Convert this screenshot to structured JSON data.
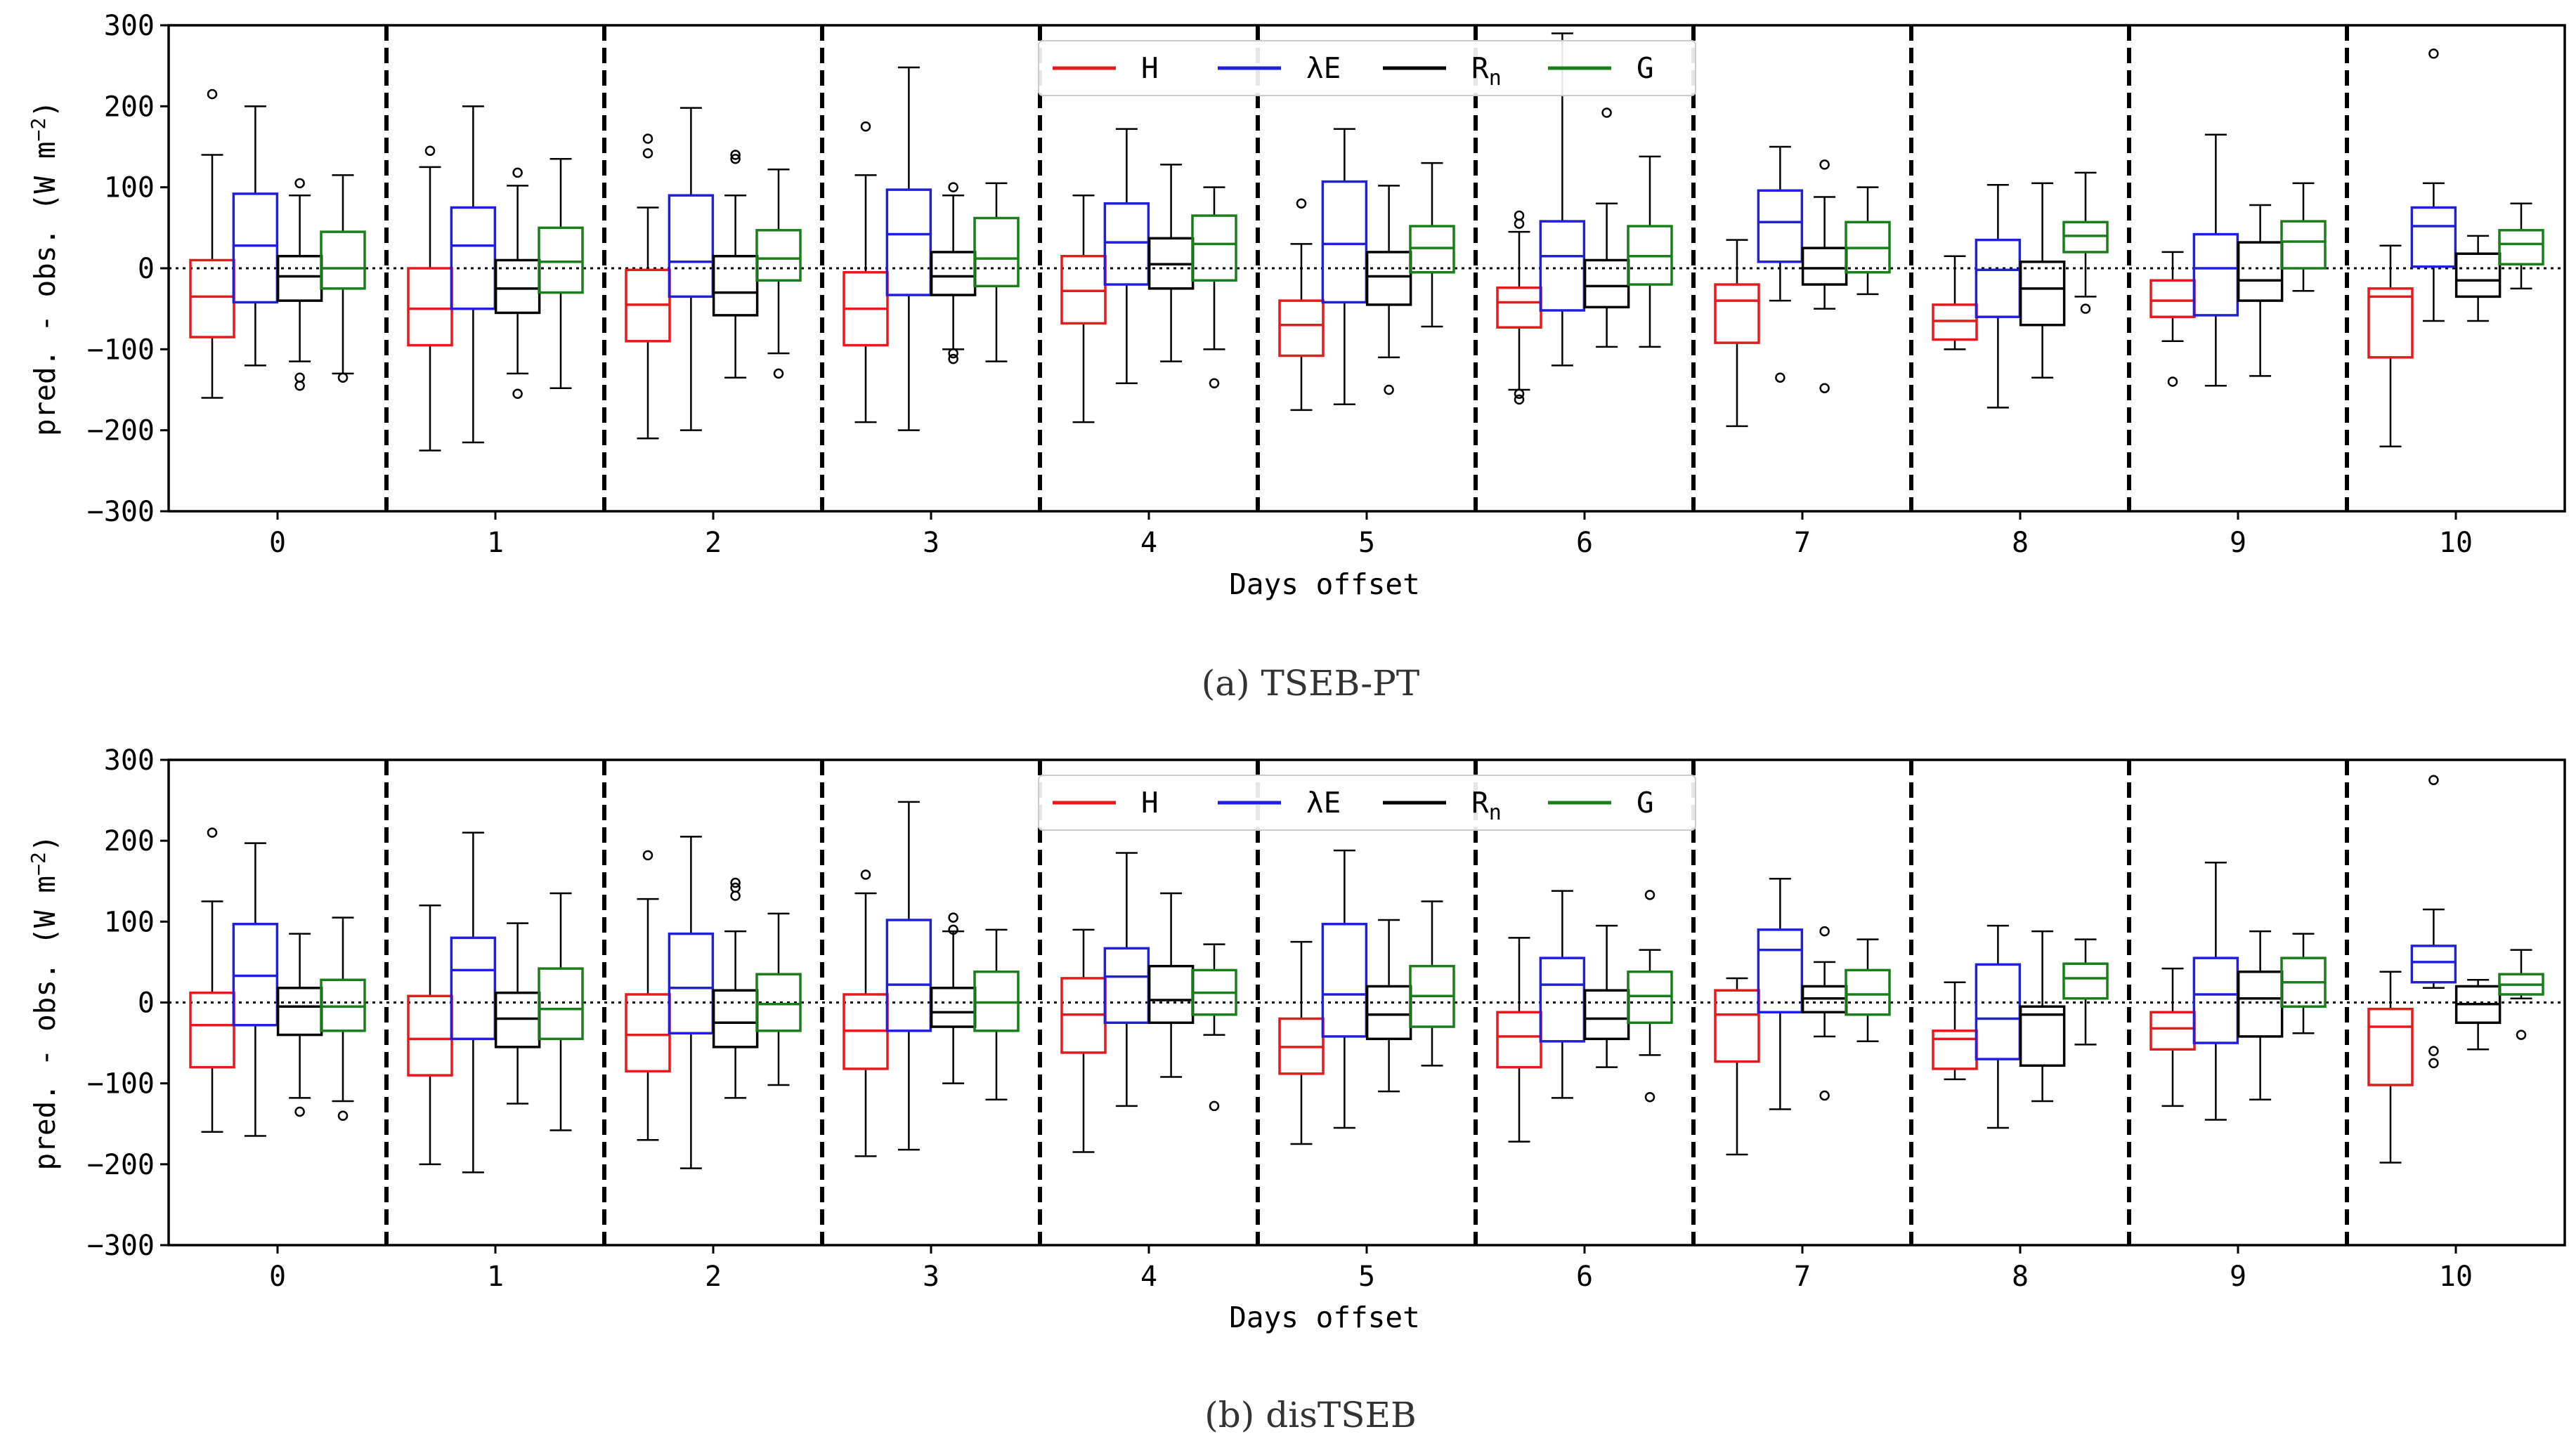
{
  "figure": {
    "captions": [
      "(a) TSEB-PT",
      "(b) disTSEB"
    ]
  },
  "series_meta": [
    {
      "key": "H",
      "label": "H",
      "color": "#e41a1c"
    },
    {
      "key": "LE",
      "label": "λE",
      "color": "#1f1fdc"
    },
    {
      "key": "Rn",
      "label": "R",
      "sub": "n",
      "color": "#000000"
    },
    {
      "key": "G",
      "label": "G",
      "color": "#1a7f1a"
    }
  ],
  "chart_data": [
    {
      "type": "box",
      "caption": "(a) TSEB-PT",
      "xlabel": "Days offset",
      "ylabel": "pred. - obs. (W m",
      "ylabel_sup": "−2",
      "ylabel_end": ")",
      "ylim": [
        -300,
        300
      ],
      "yticks": [
        -300,
        -200,
        -100,
        0,
        100,
        200,
        300
      ],
      "categories": [
        "0",
        "1",
        "2",
        "3",
        "4",
        "5",
        "6",
        "7",
        "8",
        "9",
        "10"
      ],
      "series": [
        {
          "name": "H",
          "boxes": [
            [
              -160,
              -85,
              -35,
              10,
              140
            ],
            [
              -225,
              -95,
              -50,
              0,
              125
            ],
            [
              -210,
              -90,
              -45,
              -2,
              75
            ],
            [
              -190,
              -95,
              -50,
              -5,
              115
            ],
            [
              -190,
              -68,
              -28,
              15,
              90
            ],
            [
              -175,
              -108,
              -70,
              -40,
              30
            ],
            [
              -150,
              -73,
              -42,
              -24,
              45
            ],
            [
              -195,
              -92,
              -40,
              -20,
              35
            ],
            [
              -100,
              -88,
              -65,
              -45,
              15
            ],
            [
              -90,
              -60,
              -40,
              -15,
              20
            ],
            [
              -220,
              -110,
              -35,
              -25,
              28
            ]
          ],
          "outliers": [
            [
              215
            ],
            [
              145
            ],
            [
              160,
              142
            ],
            [
              175
            ],
            [],
            [
              80
            ],
            [
              65,
              55,
              -155,
              -162
            ],
            [],
            [],
            [
              -140
            ],
            []
          ]
        },
        {
          "name": "λE",
          "boxes": [
            [
              -120,
              -42,
              28,
              92,
              200
            ],
            [
              -215,
              -50,
              28,
              75,
              200
            ],
            [
              -200,
              -35,
              8,
              90,
              198
            ],
            [
              -200,
              -33,
              42,
              97,
              248
            ],
            [
              -142,
              -20,
              32,
              80,
              172
            ],
            [
              -168,
              -42,
              30,
              107,
              172
            ],
            [
              -120,
              -52,
              15,
              58,
              290
            ],
            [
              -40,
              8,
              57,
              96,
              150
            ],
            [
              -172,
              -60,
              -2,
              35,
              103
            ],
            [
              -145,
              -58,
              0,
              42,
              165
            ],
            [
              -65,
              2,
              52,
              75,
              105
            ]
          ],
          "outliers": [
            [],
            [],
            [],
            [],
            [],
            [],
            [],
            [
              -135
            ],
            [],
            [],
            [
              265
            ]
          ]
        },
        {
          "name": "Rn",
          "boxes": [
            [
              -115,
              -40,
              -10,
              15,
              90
            ],
            [
              -130,
              -55,
              -25,
              10,
              102
            ],
            [
              -135,
              -58,
              -30,
              15,
              90
            ],
            [
              -100,
              -33,
              -10,
              20,
              90
            ],
            [
              -115,
              -25,
              5,
              37,
              128
            ],
            [
              -110,
              -45,
              -10,
              20,
              102
            ],
            [
              -97,
              -48,
              -22,
              10,
              80
            ],
            [
              -50,
              -20,
              0,
              25,
              88
            ],
            [
              -135,
              -70,
              -25,
              8,
              105
            ],
            [
              -133,
              -40,
              -15,
              32,
              78
            ],
            [
              -65,
              -35,
              -15,
              18,
              40
            ]
          ],
          "outliers": [
            [
              105,
              -135,
              -145
            ],
            [
              118,
              -155
            ],
            [
              140,
              135
            ],
            [
              100,
              -105,
              -112
            ],
            [],
            [
              -150
            ],
            [
              192
            ],
            [
              128,
              -148
            ],
            [],
            [],
            []
          ]
        },
        {
          "name": "G",
          "boxes": [
            [
              -130,
              -25,
              0,
              45,
              115
            ],
            [
              -148,
              -30,
              8,
              50,
              135
            ],
            [
              -105,
              -15,
              12,
              47,
              122
            ],
            [
              -115,
              -22,
              12,
              62,
              105
            ],
            [
              -100,
              -15,
              30,
              65,
              100
            ],
            [
              -72,
              -5,
              25,
              52,
              130
            ],
            [
              -97,
              -20,
              15,
              52,
              138
            ],
            [
              -32,
              -5,
              25,
              57,
              100
            ],
            [
              -35,
              20,
              40,
              57,
              118
            ],
            [
              -28,
              0,
              33,
              58,
              105
            ],
            [
              -25,
              5,
              30,
              47,
              80
            ]
          ],
          "outliers": [
            [
              -135
            ],
            [],
            [
              -130
            ],
            [],
            [
              -142
            ],
            [],
            [],
            [],
            [
              -50
            ],
            [],
            []
          ]
        }
      ],
      "legend": [
        "H",
        "λE",
        "Rn",
        "G"
      ],
      "legend_position": "top-center"
    },
    {
      "type": "box",
      "caption": "(b) disTSEB",
      "xlabel": "Days offset",
      "ylabel": "pred. - obs. (W m",
      "ylabel_sup": "−2",
      "ylabel_end": ")",
      "ylim": [
        -300,
        300
      ],
      "yticks": [
        -300,
        -200,
        -100,
        0,
        100,
        200,
        300
      ],
      "categories": [
        "0",
        "1",
        "2",
        "3",
        "4",
        "5",
        "6",
        "7",
        "8",
        "9",
        "10"
      ],
      "series": [
        {
          "name": "H",
          "boxes": [
            [
              -160,
              -80,
              -28,
              12,
              125
            ],
            [
              -200,
              -90,
              -45,
              8,
              120
            ],
            [
              -170,
              -85,
              -40,
              10,
              128
            ],
            [
              -190,
              -82,
              -35,
              10,
              135
            ],
            [
              -185,
              -62,
              -15,
              30,
              90
            ],
            [
              -175,
              -88,
              -55,
              -20,
              75
            ],
            [
              -172,
              -80,
              -42,
              -12,
              80
            ],
            [
              -188,
              -73,
              -15,
              15,
              30
            ],
            [
              -95,
              -82,
              -45,
              -35,
              25
            ],
            [
              -128,
              -58,
              -32,
              -12,
              42
            ],
            [
              -198,
              -102,
              -30,
              -8,
              38
            ]
          ],
          "outliers": [
            [
              210
            ],
            [],
            [
              182
            ],
            [
              158
            ],
            [],
            [],
            [],
            [],
            [],
            [],
            []
          ]
        },
        {
          "name": "λE",
          "boxes": [
            [
              -165,
              -28,
              33,
              97,
              197
            ],
            [
              -210,
              -45,
              40,
              80,
              210
            ],
            [
              -205,
              -38,
              18,
              85,
              205
            ],
            [
              -182,
              -35,
              22,
              102,
              248
            ],
            [
              -128,
              -25,
              32,
              67,
              185
            ],
            [
              -155,
              -42,
              10,
              97,
              188
            ],
            [
              -118,
              -48,
              22,
              55,
              138
            ],
            [
              -132,
              -12,
              65,
              90,
              153
            ],
            [
              -155,
              -70,
              -20,
              47,
              95
            ],
            [
              -145,
              -50,
              10,
              55,
              173
            ],
            [
              18,
              25,
              50,
              70,
              115
            ]
          ],
          "outliers": [
            [],
            [],
            [],
            [],
            [],
            [],
            [],
            [],
            [],
            [],
            [
              275,
              -60,
              -75
            ]
          ]
        },
        {
          "name": "Rn",
          "boxes": [
            [
              -118,
              -40,
              -5,
              18,
              85
            ],
            [
              -125,
              -55,
              -20,
              12,
              98
            ],
            [
              -118,
              -55,
              -25,
              15,
              88
            ],
            [
              -100,
              -30,
              -12,
              18,
              88
            ],
            [
              -92,
              -25,
              3,
              45,
              135
            ],
            [
              -110,
              -45,
              -15,
              20,
              102
            ],
            [
              -80,
              -45,
              -20,
              15,
              95
            ],
            [
              -42,
              -12,
              5,
              20,
              50
            ],
            [
              -122,
              -78,
              -15,
              -5,
              88
            ],
            [
              -120,
              -42,
              5,
              38,
              88
            ],
            [
              -58,
              -25,
              -2,
              20,
              28
            ]
          ],
          "outliers": [
            [
              -135
            ],
            [],
            [
              148,
              142,
              132
            ],
            [
              105,
              90
            ],
            [],
            [],
            [],
            [
              88,
              -115
            ],
            [],
            [],
            []
          ]
        },
        {
          "name": "G",
          "boxes": [
            [
              -122,
              -35,
              -5,
              28,
              105
            ],
            [
              -158,
              -45,
              -8,
              42,
              135
            ],
            [
              -102,
              -35,
              -2,
              35,
              110
            ],
            [
              -120,
              -35,
              0,
              38,
              90
            ],
            [
              -40,
              -15,
              12,
              40,
              72
            ],
            [
              -78,
              -30,
              8,
              45,
              125
            ],
            [
              -65,
              -25,
              8,
              38,
              65
            ],
            [
              -48,
              -15,
              10,
              40,
              78
            ],
            [
              -52,
              5,
              30,
              48,
              78
            ],
            [
              -38,
              -5,
              25,
              55,
              85
            ],
            [
              5,
              10,
              22,
              35,
              65
            ]
          ],
          "outliers": [
            [
              -140
            ],
            [],
            [],
            [],
            [
              -128
            ],
            [],
            [
              133,
              -117
            ],
            [],
            [],
            [],
            [
              -40
            ]
          ]
        }
      ],
      "legend": [
        "H",
        "λE",
        "Rn",
        "G"
      ],
      "legend_position": "top-center"
    }
  ]
}
